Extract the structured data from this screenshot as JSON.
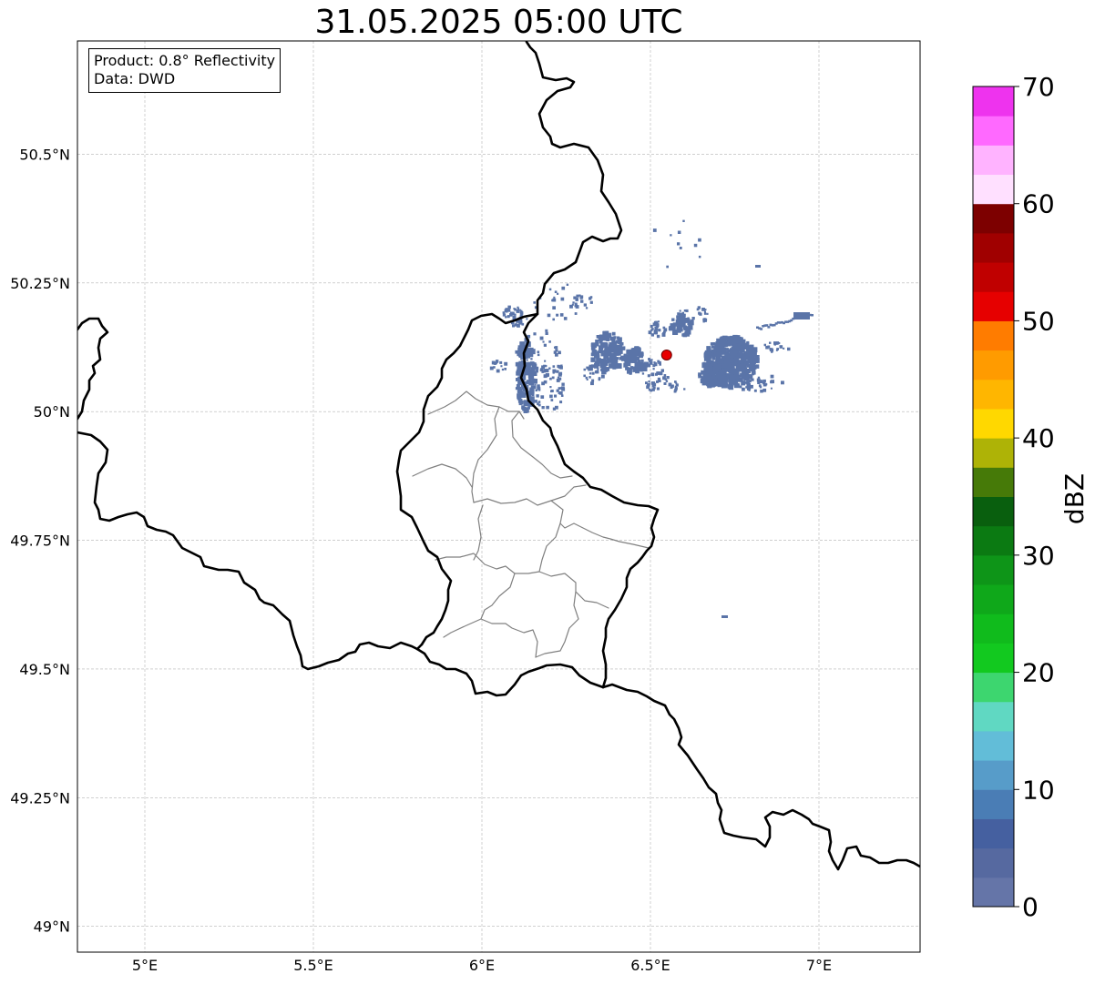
{
  "title": "31.05.2025 05:00 UTC",
  "info_box": {
    "product": "Product: 0.8° Reflectivity",
    "data": "Data: DWD"
  },
  "map": {
    "extent": {
      "lon": [
        4.8,
        7.3
      ],
      "lat": [
        48.95,
        50.72
      ]
    },
    "x_ticks": [
      {
        "value": 5.0,
        "label": "5°E"
      },
      {
        "value": 5.5,
        "label": "5.5°E"
      },
      {
        "value": 6.0,
        "label": "6°E"
      },
      {
        "value": 6.5,
        "label": "6.5°E"
      },
      {
        "value": 7.0,
        "label": "7°E"
      }
    ],
    "y_ticks": [
      {
        "value": 49.0,
        "label": "49°N"
      },
      {
        "value": 49.25,
        "label": "49.25°N"
      },
      {
        "value": 49.5,
        "label": "49.5°N"
      },
      {
        "value": 49.75,
        "label": "49.75°N"
      },
      {
        "value": 50.0,
        "label": "50°N"
      },
      {
        "value": 50.25,
        "label": "50.25°N"
      },
      {
        "value": 50.5,
        "label": "50.5°N"
      }
    ],
    "gridlines": true,
    "radar_site": {
      "lon": 6.548,
      "lat": 50.11,
      "color": "#e80000"
    },
    "echo_color": "#5a74a8"
  },
  "colorbar": {
    "label": "dBZ",
    "min": 0,
    "max": 70,
    "step": 2.5,
    "tick_labels": [
      "0",
      "10",
      "20",
      "30",
      "40",
      "50",
      "60",
      "70"
    ],
    "colors": [
      "#6575a8",
      "#5669a0",
      "#4560a0",
      "#4a7db5",
      "#579cc9",
      "#62bdd8",
      "#60d8c2",
      "#3dd66f",
      "#12c91f",
      "#10bb1c",
      "#0fa81a",
      "#0e9518",
      "#0b7a12",
      "#095f0e",
      "#467a08",
      "#aeb306",
      "#ffd800",
      "#ffb600",
      "#ff9b00",
      "#ff7c00",
      "#e60000",
      "#c00000",
      "#a00000",
      "#7d0000",
      "#ffe0ff",
      "#ffb3ff",
      "#ff69ff",
      "#ee33ee"
    ]
  }
}
